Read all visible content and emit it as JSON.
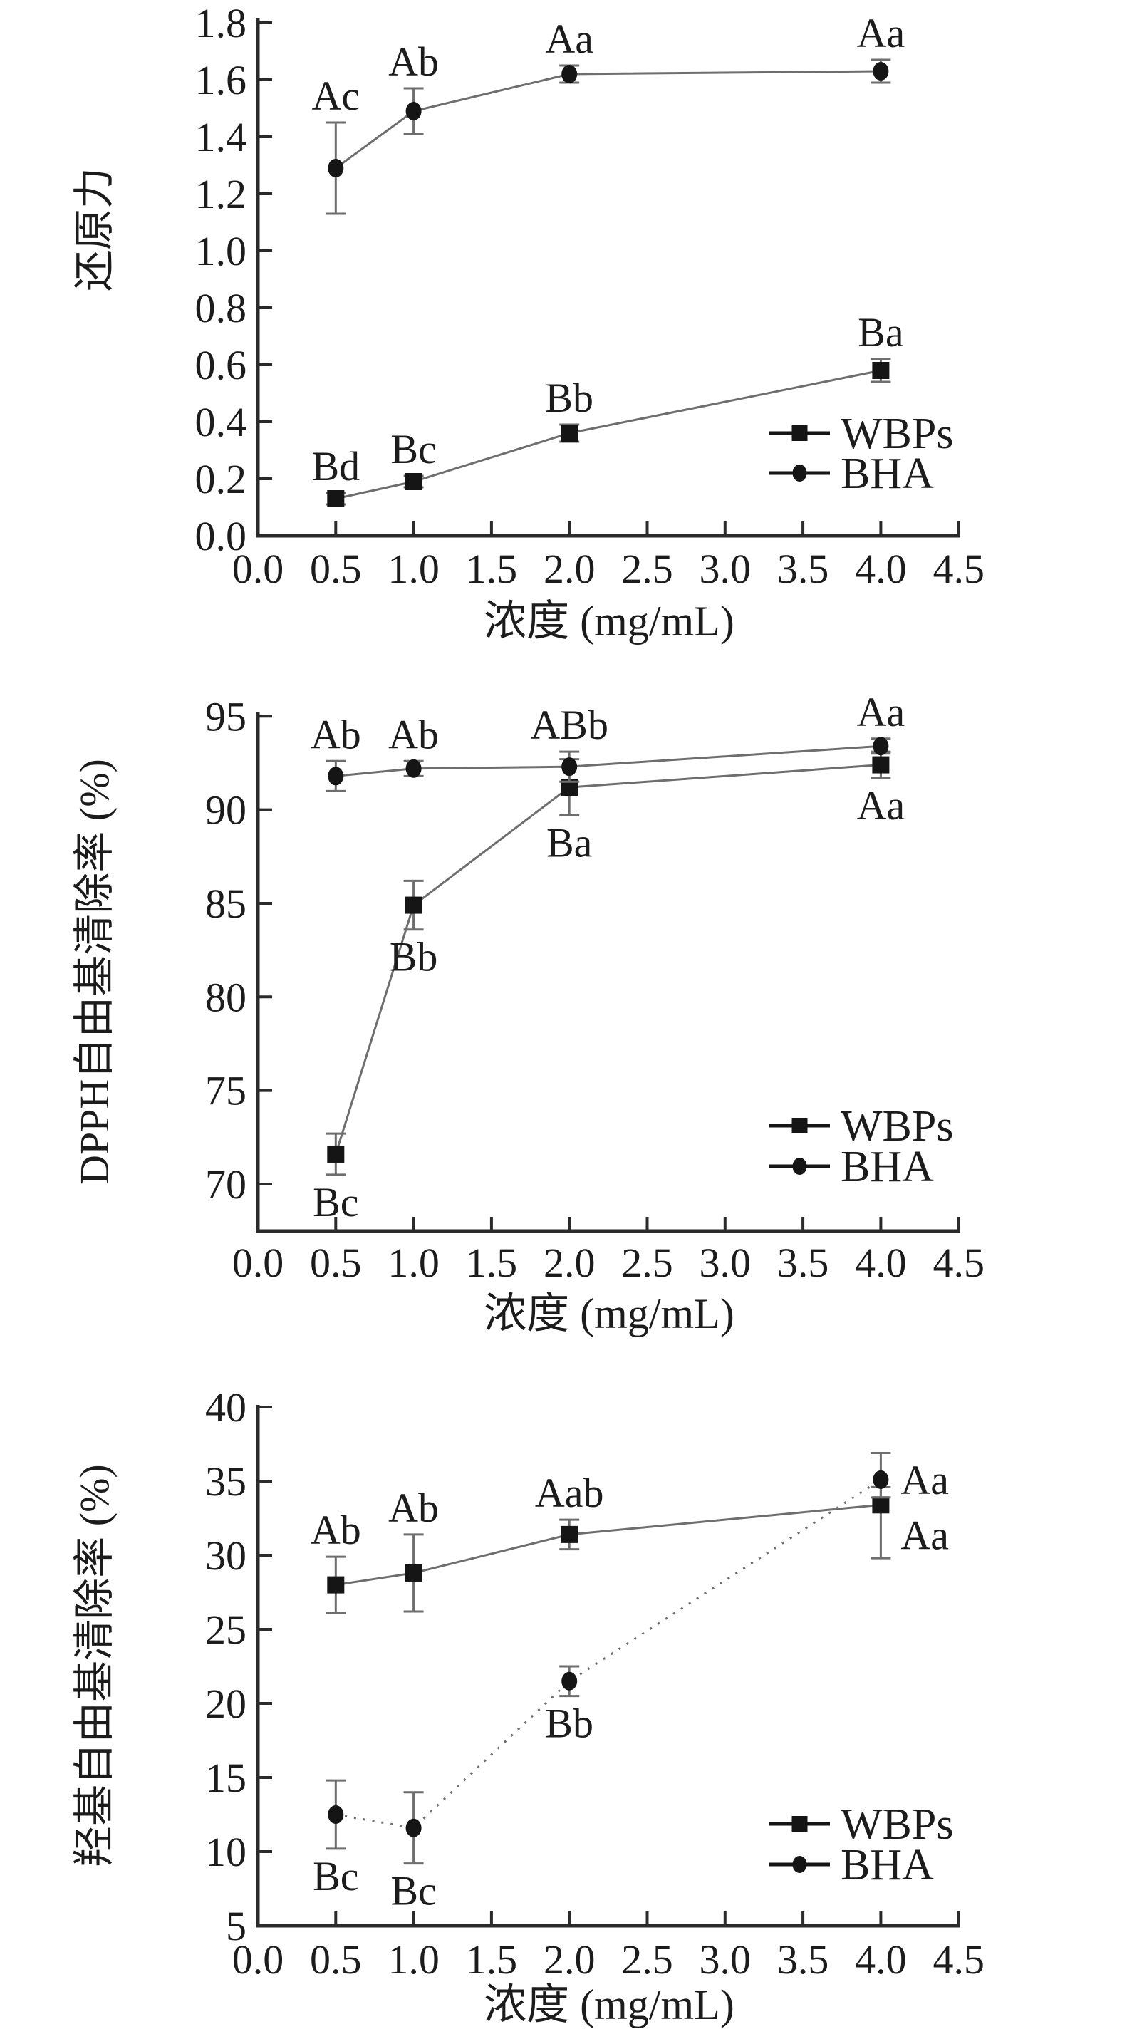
{
  "figure": {
    "description": "Three stacked antioxidant-activity line charts comparing WBPs and BHA versus concentration",
    "colors": {
      "background": "#ffffff",
      "text": "#1c1c1c",
      "axis": "#2b2b2b",
      "series_line": "#6e6e6e",
      "marker": "#151515",
      "error_bar": "#6e6e6e"
    }
  },
  "legend": {
    "entries": [
      {
        "label": "WBPs",
        "marker": "square-icon"
      },
      {
        "label": "BHA",
        "marker": "circle-icon"
      }
    ]
  },
  "chart_data": [
    {
      "type": "line",
      "title": "",
      "xlabel": "浓度 (mg/mL)",
      "ylabel": "还原力",
      "x": [
        0.5,
        1.0,
        2.0,
        4.0
      ],
      "xlim": [
        0.0,
        4.5
      ],
      "ylim": [
        0.0,
        1.8
      ],
      "grid": false,
      "legend_position": "lower-right",
      "x_tick_labels": [
        "0.0",
        "0.5",
        "1.0",
        "1.5",
        "2.0",
        "2.5",
        "3.0",
        "3.5",
        "4.0",
        "4.5"
      ],
      "y_tick_labels": [
        "0.0",
        "0.2",
        "0.4",
        "0.6",
        "0.8",
        "1.0",
        "1.2",
        "1.4",
        "1.6",
        "1.8"
      ],
      "series": [
        {
          "name": "WBPs",
          "marker": "square",
          "dash": "",
          "values": [
            0.13,
            0.19,
            0.36,
            0.58
          ],
          "errors": [
            [
              0.02,
              0.02
            ],
            [
              0.02,
              0.02
            ],
            [
              0.03,
              0.03
            ],
            [
              0.04,
              0.04
            ]
          ],
          "point_labels": [
            "Bd",
            "Bc",
            "Bb",
            "Ba"
          ],
          "label_positions": [
            "above",
            "above",
            "above",
            "above"
          ]
        },
        {
          "name": "BHA",
          "marker": "circle",
          "dash": "",
          "values": [
            1.29,
            1.49,
            1.62,
            1.63
          ],
          "errors": [
            [
              0.16,
              0.16
            ],
            [
              0.08,
              0.08
            ],
            [
              0.03,
              0.03
            ],
            [
              0.04,
              0.04
            ]
          ],
          "point_labels": [
            "Ac",
            "Ab",
            "Aa",
            "Aa"
          ],
          "label_positions": [
            "above",
            "above",
            "above",
            "above"
          ]
        }
      ]
    },
    {
      "type": "line",
      "title": "",
      "xlabel": "浓度 (mg/mL)",
      "ylabel": "DPPH自由基清除率 (%)",
      "x": [
        0.5,
        1.0,
        2.0,
        4.0
      ],
      "xlim": [
        0.0,
        4.5
      ],
      "ylim": [
        67.5,
        95.5
      ],
      "grid": false,
      "legend_position": "lower-right",
      "x_tick_labels": [
        "0.0",
        "0.5",
        "1.0",
        "1.5",
        "2.0",
        "2.5",
        "3.0",
        "3.5",
        "4.0",
        "4.5"
      ],
      "y_tick_labels": [
        "70",
        "75",
        "80",
        "85",
        "90",
        "95"
      ],
      "series": [
        {
          "name": "WBPs",
          "marker": "square",
          "dash": "",
          "values": [
            71.6,
            84.9,
            91.2,
            92.4
          ],
          "errors": [
            [
              1.1,
              1.1
            ],
            [
              1.3,
              1.3
            ],
            [
              1.5,
              1.5
            ],
            [
              0.7,
              0.7
            ]
          ],
          "point_labels": [
            "Bc",
            "Bb",
            "Ba",
            "Aa"
          ],
          "label_positions": [
            "below",
            "below",
            "below",
            "below"
          ]
        },
        {
          "name": "BHA",
          "marker": "circle",
          "dash": "",
          "values": [
            91.8,
            92.2,
            92.3,
            93.4
          ],
          "errors": [
            [
              0.8,
              0.8
            ],
            [
              0.4,
              0.4
            ],
            [
              0.8,
              0.8
            ],
            [
              0.4,
              0.4
            ]
          ],
          "point_labels": [
            "Ab",
            "Ab",
            "ABb",
            "Aa"
          ],
          "label_positions": [
            "above",
            "above",
            "above",
            "above"
          ]
        }
      ]
    },
    {
      "type": "line",
      "title": "",
      "xlabel": "浓度 (mg/mL)",
      "ylabel": "羟基自由基清除率 (%)",
      "x": [
        0.5,
        1.0,
        2.0,
        4.0
      ],
      "xlim": [
        0.0,
        4.5
      ],
      "ylim": [
        5,
        40
      ],
      "grid": false,
      "legend_position": "lower-right",
      "x_tick_labels": [
        "0.0",
        "0.5",
        "1.0",
        "1.5",
        "2.0",
        "2.5",
        "3.0",
        "3.5",
        "4.0",
        "4.5"
      ],
      "y_tick_labels": [
        "5",
        "10",
        "15",
        "20",
        "25",
        "30",
        "35",
        "40"
      ],
      "series": [
        {
          "name": "WBPs",
          "marker": "square",
          "dash": "",
          "values": [
            28.0,
            28.8,
            31.4,
            33.4
          ],
          "errors": [
            [
              1.9,
              1.9
            ],
            [
              2.6,
              2.6
            ],
            [
              1.0,
              1.0
            ],
            [
              3.6,
              1.2
            ]
          ],
          "point_labels": [
            "Ab",
            "Ab",
            "Aab",
            "Aa"
          ],
          "label_positions": [
            "above",
            "above",
            "above",
            "right-below"
          ]
        },
        {
          "name": "BHA",
          "marker": "circle",
          "dash": "3 10",
          "values": [
            12.5,
            11.6,
            21.5,
            35.1
          ],
          "errors": [
            [
              2.3,
              2.3
            ],
            [
              2.4,
              2.4
            ],
            [
              1.0,
              1.0
            ],
            [
              1.2,
              1.8
            ]
          ],
          "point_labels": [
            "Bc",
            "Bc",
            "Bb",
            "Aa"
          ],
          "label_positions": [
            "below",
            "below",
            "below",
            "right"
          ]
        }
      ]
    }
  ]
}
